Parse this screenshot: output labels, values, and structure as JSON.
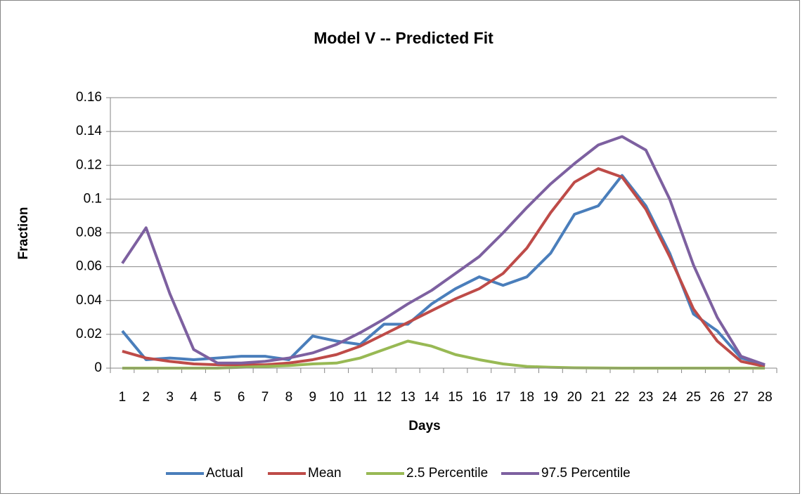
{
  "chart_data": {
    "type": "line",
    "title": "Model V -- Predicted Fit",
    "x_label": "Days",
    "y_label": "Fraction",
    "categories": [
      "1",
      "2",
      "3",
      "4",
      "5",
      "6",
      "7",
      "8",
      "9",
      "10",
      "11",
      "12",
      "13",
      "14",
      "15",
      "16",
      "17",
      "18",
      "19",
      "20",
      "21",
      "22",
      "23",
      "24",
      "25",
      "26",
      "27",
      "28"
    ],
    "series": [
      {
        "name": "Actual",
        "color": "#4a7ebb",
        "values": [
          0.022,
          0.005,
          0.006,
          0.005,
          0.006,
          0.007,
          0.007,
          0.005,
          0.019,
          0.016,
          0.014,
          0.026,
          0.026,
          0.038,
          0.047,
          0.054,
          0.049,
          0.054,
          0.068,
          0.091,
          0.096,
          0.114,
          0.096,
          0.068,
          0.032,
          0.022,
          0.006,
          0.002
        ]
      },
      {
        "name": "Mean",
        "color": "#be4b48",
        "values": [
          0.01,
          0.006,
          0.004,
          0.0025,
          0.002,
          0.002,
          0.002,
          0.003,
          0.005,
          0.008,
          0.013,
          0.02,
          0.027,
          0.034,
          0.041,
          0.047,
          0.056,
          0.071,
          0.092,
          0.11,
          0.118,
          0.113,
          0.094,
          0.066,
          0.035,
          0.016,
          0.004,
          0.001
        ]
      },
      {
        "name": "2.5 Percentile",
        "color": "#98b954",
        "values": [
          0,
          0,
          0,
          0,
          0,
          0.0005,
          0.001,
          0.0015,
          0.0025,
          0.003,
          0.006,
          0.011,
          0.016,
          0.013,
          0.008,
          0.005,
          0.0025,
          0.001,
          0.0005,
          0.0002,
          0.0001,
          0,
          0,
          0,
          0,
          0,
          0,
          0
        ]
      },
      {
        "name": "97.5 Percentile",
        "color": "#7d60a0",
        "values": [
          0.062,
          0.083,
          0.044,
          0.011,
          0.003,
          0.003,
          0.004,
          0.006,
          0.009,
          0.014,
          0.021,
          0.029,
          0.038,
          0.046,
          0.056,
          0.066,
          0.08,
          0.095,
          0.109,
          0.121,
          0.132,
          0.137,
          0.129,
          0.1,
          0.061,
          0.03,
          0.007,
          0.002
        ]
      }
    ],
    "ylim": [
      0,
      0.16
    ],
    "yticks": [
      0,
      0.02,
      0.04,
      0.06,
      0.08,
      0.1,
      0.12,
      0.14,
      0.16
    ],
    "grid": true,
    "legend": "bottom"
  }
}
